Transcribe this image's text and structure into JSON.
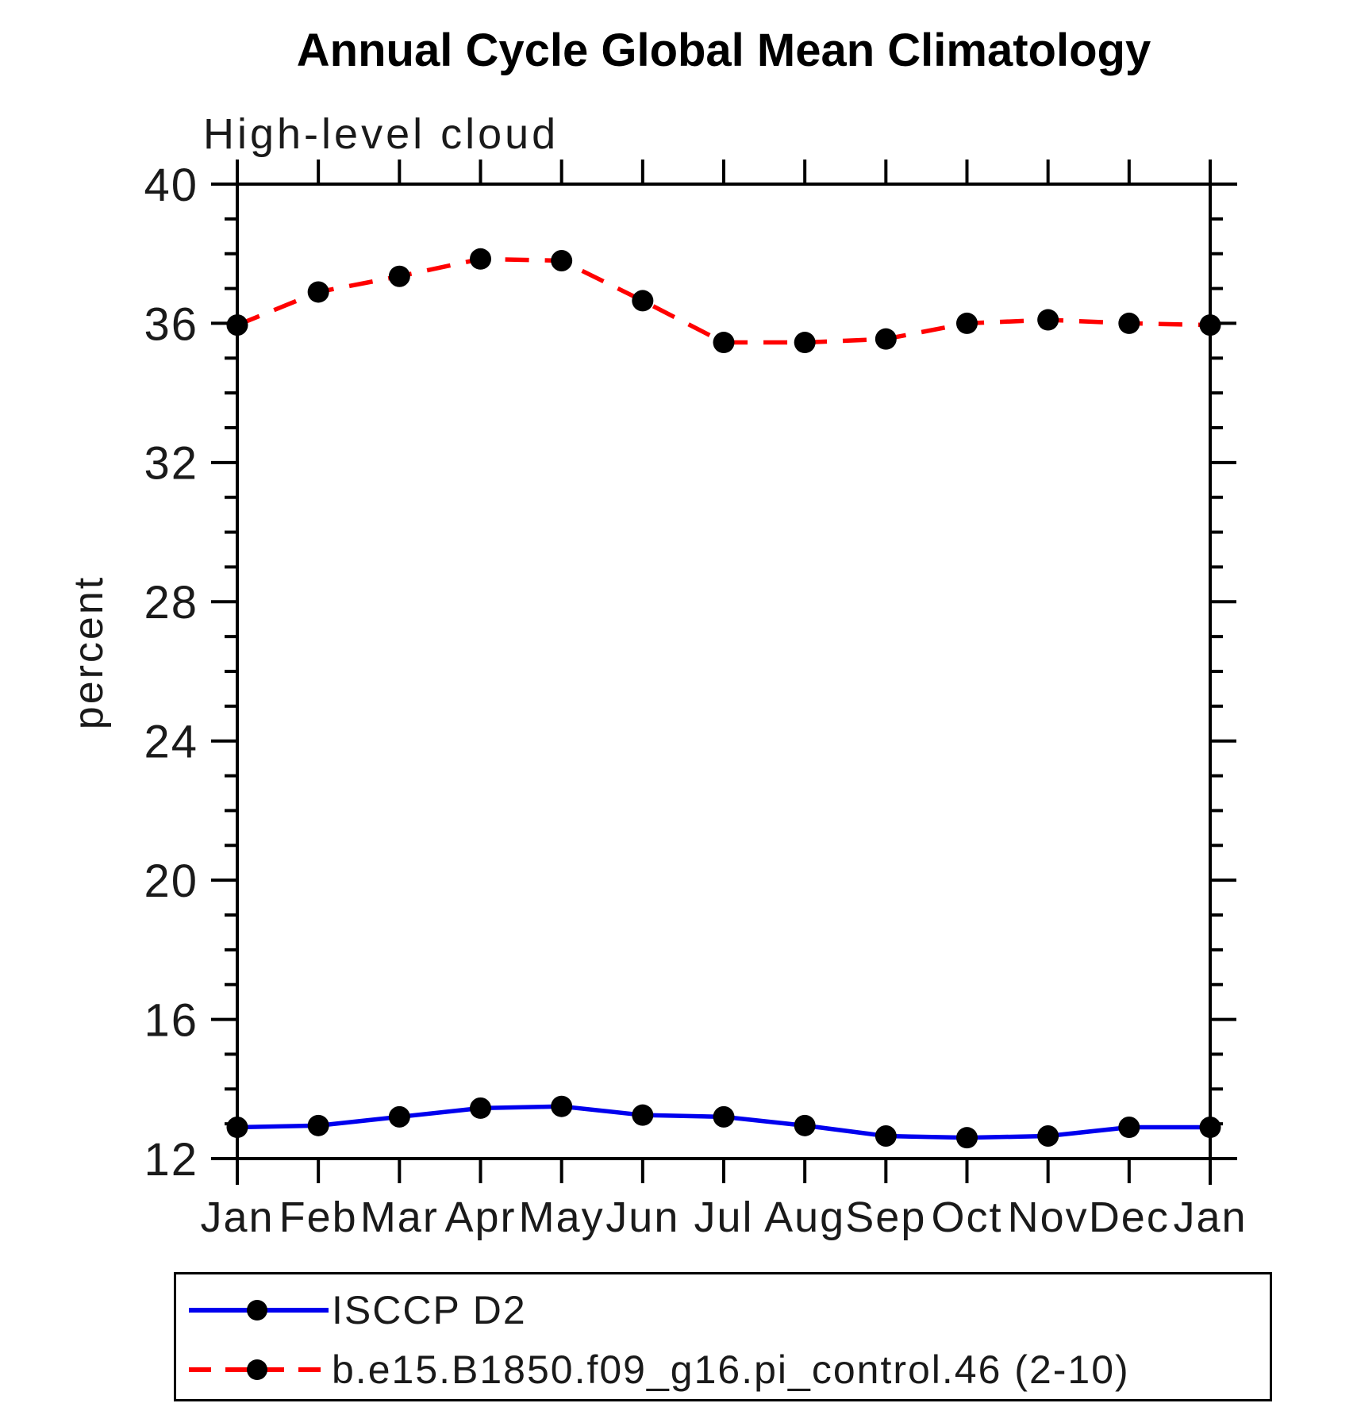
{
  "figure": {
    "title": "Annual Cycle Global Mean Climatology",
    "subtitle": "High-level cloud",
    "ylabel": "percent"
  },
  "legend": {
    "items": [
      {
        "label": "ISCCP D2",
        "color": "#0000ee",
        "line_style": "solid",
        "marker": "black-dot"
      },
      {
        "label": "b.e15.B1850.f09_g16.pi_control.46 (2-10)",
        "color": "#ff0000",
        "line_style": "dashed",
        "marker": "black-dot"
      }
    ]
  },
  "chart_data": {
    "type": "line",
    "title": "Annual Cycle Global Mean Climatology",
    "subtitle": "High-level cloud",
    "xlabel": "",
    "ylabel": "percent",
    "x_tick_labels": [
      "Jan",
      "Feb",
      "Mar",
      "Apr",
      "May",
      "Jun",
      "Jul",
      "Aug",
      "Sep",
      "Oct",
      "Nov",
      "Dec",
      "Jan"
    ],
    "ylim": [
      12,
      40
    ],
    "y_major_ticks": [
      40,
      36,
      32,
      28,
      24,
      20,
      16,
      12
    ],
    "y_minor_tick_step": 1,
    "grid": false,
    "legend_position": "bottom-left-box",
    "series": [
      {
        "name": "ISCCP D2",
        "color": "#0000ee",
        "line_style": "solid",
        "marker_color": "#000000",
        "values": [
          12.9,
          12.95,
          13.2,
          13.45,
          13.5,
          13.25,
          13.2,
          12.95,
          12.65,
          12.6,
          12.65,
          12.9,
          12.9
        ]
      },
      {
        "name": "b.e15.B1850.f09_g16.pi_control.46 (2-10)",
        "color": "#ff0000",
        "line_style": "dashed",
        "marker_color": "#000000",
        "values": [
          35.95,
          36.9,
          37.35,
          37.85,
          37.8,
          36.65,
          35.45,
          35.45,
          35.55,
          36.0,
          36.1,
          36.0,
          35.95
        ]
      }
    ]
  }
}
